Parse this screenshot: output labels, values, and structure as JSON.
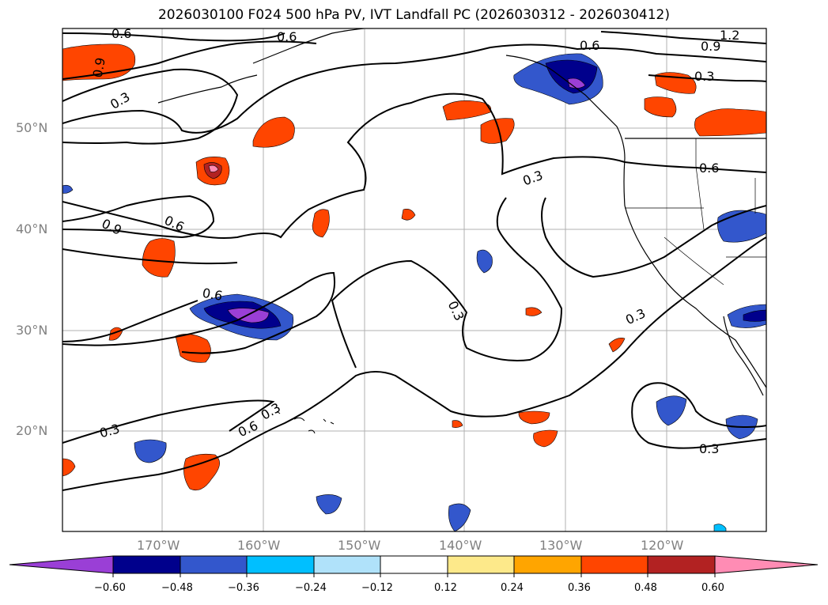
{
  "title": "2026030100 F024 500 hPa PV, IVT Landfall PC (2026030312 - 2026030412)",
  "lat_labels": [
    "50°N",
    "40°N",
    "30°N",
    "20°N"
  ],
  "lon_labels": [
    "170°W",
    "160°W",
    "150°W",
    "140°W",
    "130°W",
    "120°W"
  ],
  "contour_labels": [
    "0.6",
    "0.6",
    "0.9",
    "0.3",
    "0.6",
    "1.2",
    "0.9",
    "0.3",
    "0.3",
    "0.6",
    "0.6",
    "0.9",
    "0.6",
    "0.3",
    "0.3",
    "0.3",
    "0.6",
    "0.3",
    "0.3"
  ],
  "colorbar": {
    "tick_labels": [
      "−0.60",
      "−0.48",
      "−0.36",
      "−0.24",
      "−0.12",
      "0.12",
      "0.24",
      "0.36",
      "0.48",
      "0.60"
    ],
    "colors": [
      "#9a3fd6",
      "#00008c",
      "#3357cc",
      "#00bfff",
      "#b0e2fa",
      "#ffffff",
      "#fde98a",
      "#ffa500",
      "#ff4500",
      "#b22222",
      "#ff8cb4"
    ]
  }
}
